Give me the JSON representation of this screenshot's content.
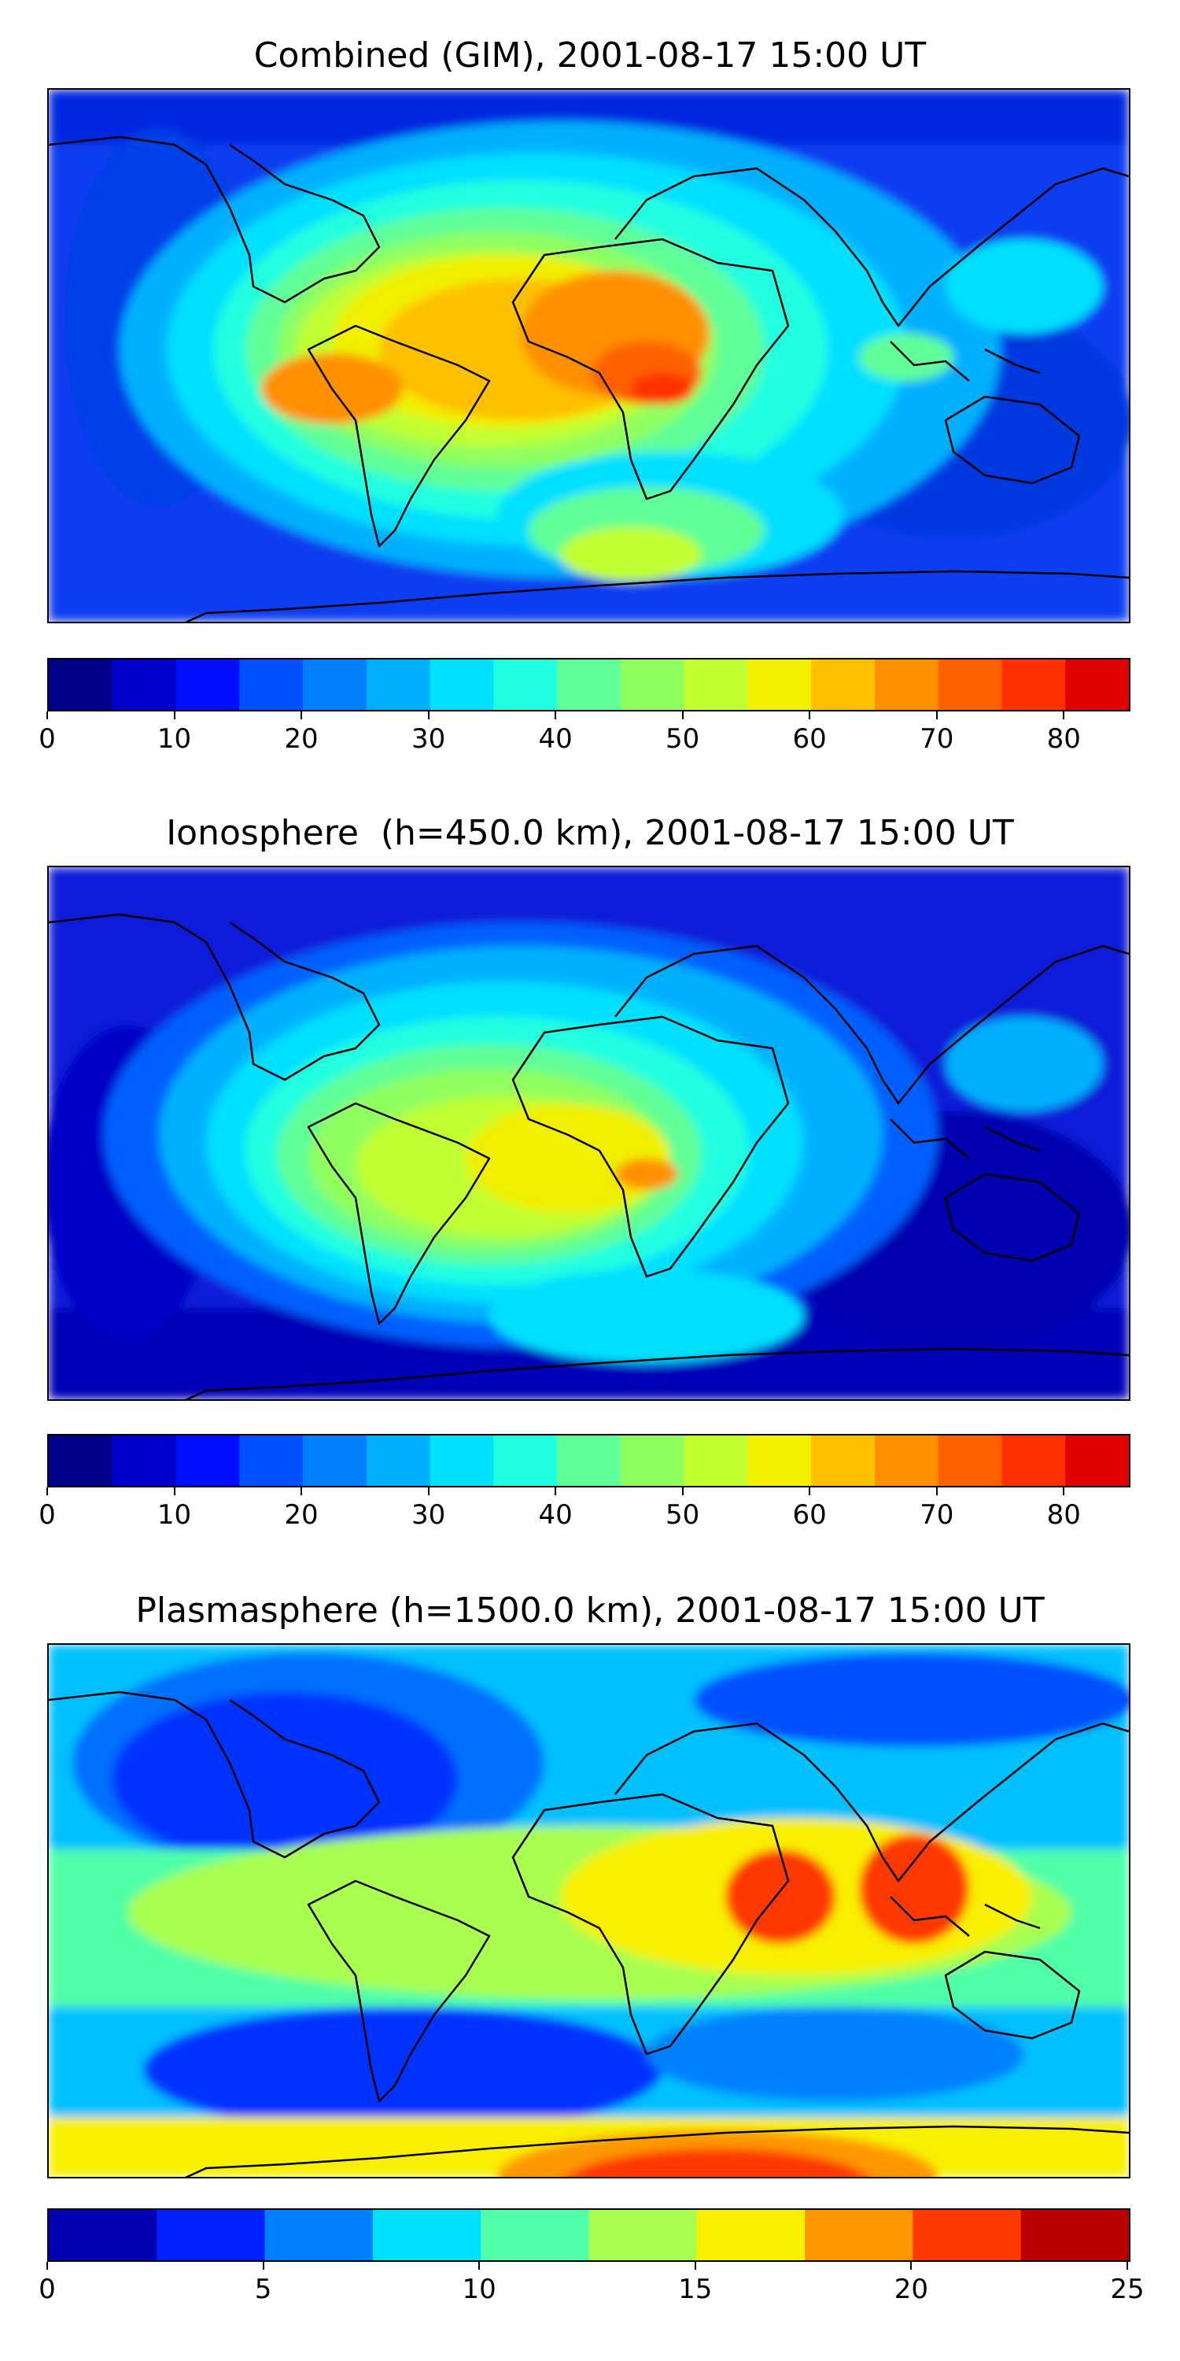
{
  "panels": [
    {
      "title": "Combined (GIM), 2001-08-17 15:00 UT",
      "colorbar": {
        "levels": [
          0,
          5,
          10,
          15,
          20,
          25,
          30,
          35,
          40,
          45,
          50,
          55,
          60,
          65,
          70,
          75,
          80,
          85
        ],
        "colors": [
          "#00008b",
          "#0000cd",
          "#0010ff",
          "#0050ff",
          "#0080ff",
          "#00b0ff",
          "#00e0ff",
          "#20ffe0",
          "#60ff98",
          "#90ff60",
          "#c0ff30",
          "#f0f000",
          "#ffc000",
          "#ff9000",
          "#ff6000",
          "#ff3000",
          "#e00000",
          "#a00000"
        ],
        "tick_values": [
          0,
          10,
          20,
          30,
          40,
          50,
          60,
          70,
          80
        ],
        "tick_labels": [
          "0",
          "10",
          "20",
          "30",
          "40",
          "50",
          "60",
          "70",
          "80"
        ]
      },
      "map_background": "#0a3cf0"
    },
    {
      "title": "Ionosphere  (h=450.0 km), 2001-08-17 15:00 UT",
      "colorbar": {
        "levels": [
          0,
          5,
          10,
          15,
          20,
          25,
          30,
          35,
          40,
          45,
          50,
          55,
          60,
          65,
          70,
          75,
          80,
          85
        ],
        "colors": [
          "#00008b",
          "#0000cd",
          "#0010ff",
          "#0050ff",
          "#0080ff",
          "#00b0ff",
          "#00e0ff",
          "#20ffe0",
          "#60ff98",
          "#90ff60",
          "#c0ff30",
          "#f0f000",
          "#ffc000",
          "#ff9000",
          "#ff6000",
          "#ff3000",
          "#e00000",
          "#a00000"
        ],
        "tick_values": [
          0,
          10,
          20,
          30,
          40,
          50,
          60,
          70,
          80
        ],
        "tick_labels": [
          "0",
          "10",
          "20",
          "30",
          "40",
          "50",
          "60",
          "70",
          "80"
        ]
      },
      "map_background": "#0a1ed8"
    },
    {
      "title": "Plasmasphere (h=1500.0 km), 2001-08-17 15:00 UT",
      "colorbar": {
        "levels": [
          0,
          2.5,
          5,
          7.5,
          10,
          12.5,
          15,
          17.5,
          20,
          22.5,
          25
        ],
        "colors": [
          "#0000b0",
          "#0020ff",
          "#0080ff",
          "#00e0ff",
          "#50ffa8",
          "#a8ff50",
          "#f8f000",
          "#ff9800",
          "#ff3800",
          "#b80000"
        ],
        "tick_values": [
          0,
          5,
          10,
          15,
          20,
          25
        ],
        "tick_labels": [
          "0",
          "5",
          "10",
          "15",
          "20",
          "25"
        ]
      },
      "map_background": "#00c0ff"
    }
  ]
}
